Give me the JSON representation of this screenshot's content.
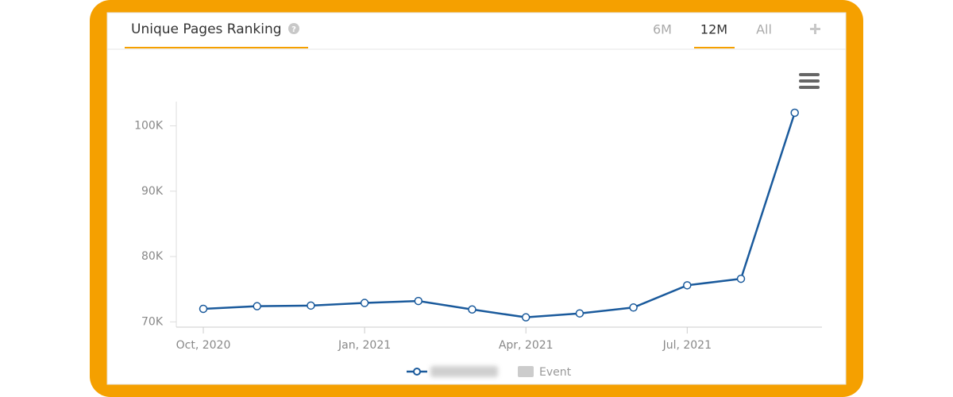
{
  "header": {
    "title": "Unique Pages Ranking",
    "tabs": [
      "6M",
      "12M",
      "All"
    ],
    "active_tab": 1
  },
  "chart_data": {
    "type": "line",
    "categories": [
      "Oct, 2020",
      null,
      null,
      "Jan, 2021",
      null,
      null,
      "Apr, 2021",
      null,
      null,
      "Jul, 2021",
      null,
      null
    ],
    "series": [
      {
        "color": "#1a5a9c",
        "values": [
          72000,
          72400,
          72500,
          72900,
          73200,
          71900,
          70700,
          71300,
          72200,
          75600,
          76600,
          102000
        ]
      }
    ],
    "ylim": [
      69200,
      103700
    ],
    "yticks": [
      {
        "value": 70000,
        "label": "70K"
      },
      {
        "value": 80000,
        "label": "80K"
      },
      {
        "value": 90000,
        "label": "90K"
      },
      {
        "value": 100000,
        "label": "100K"
      }
    ],
    "legend_extra": "Event"
  }
}
